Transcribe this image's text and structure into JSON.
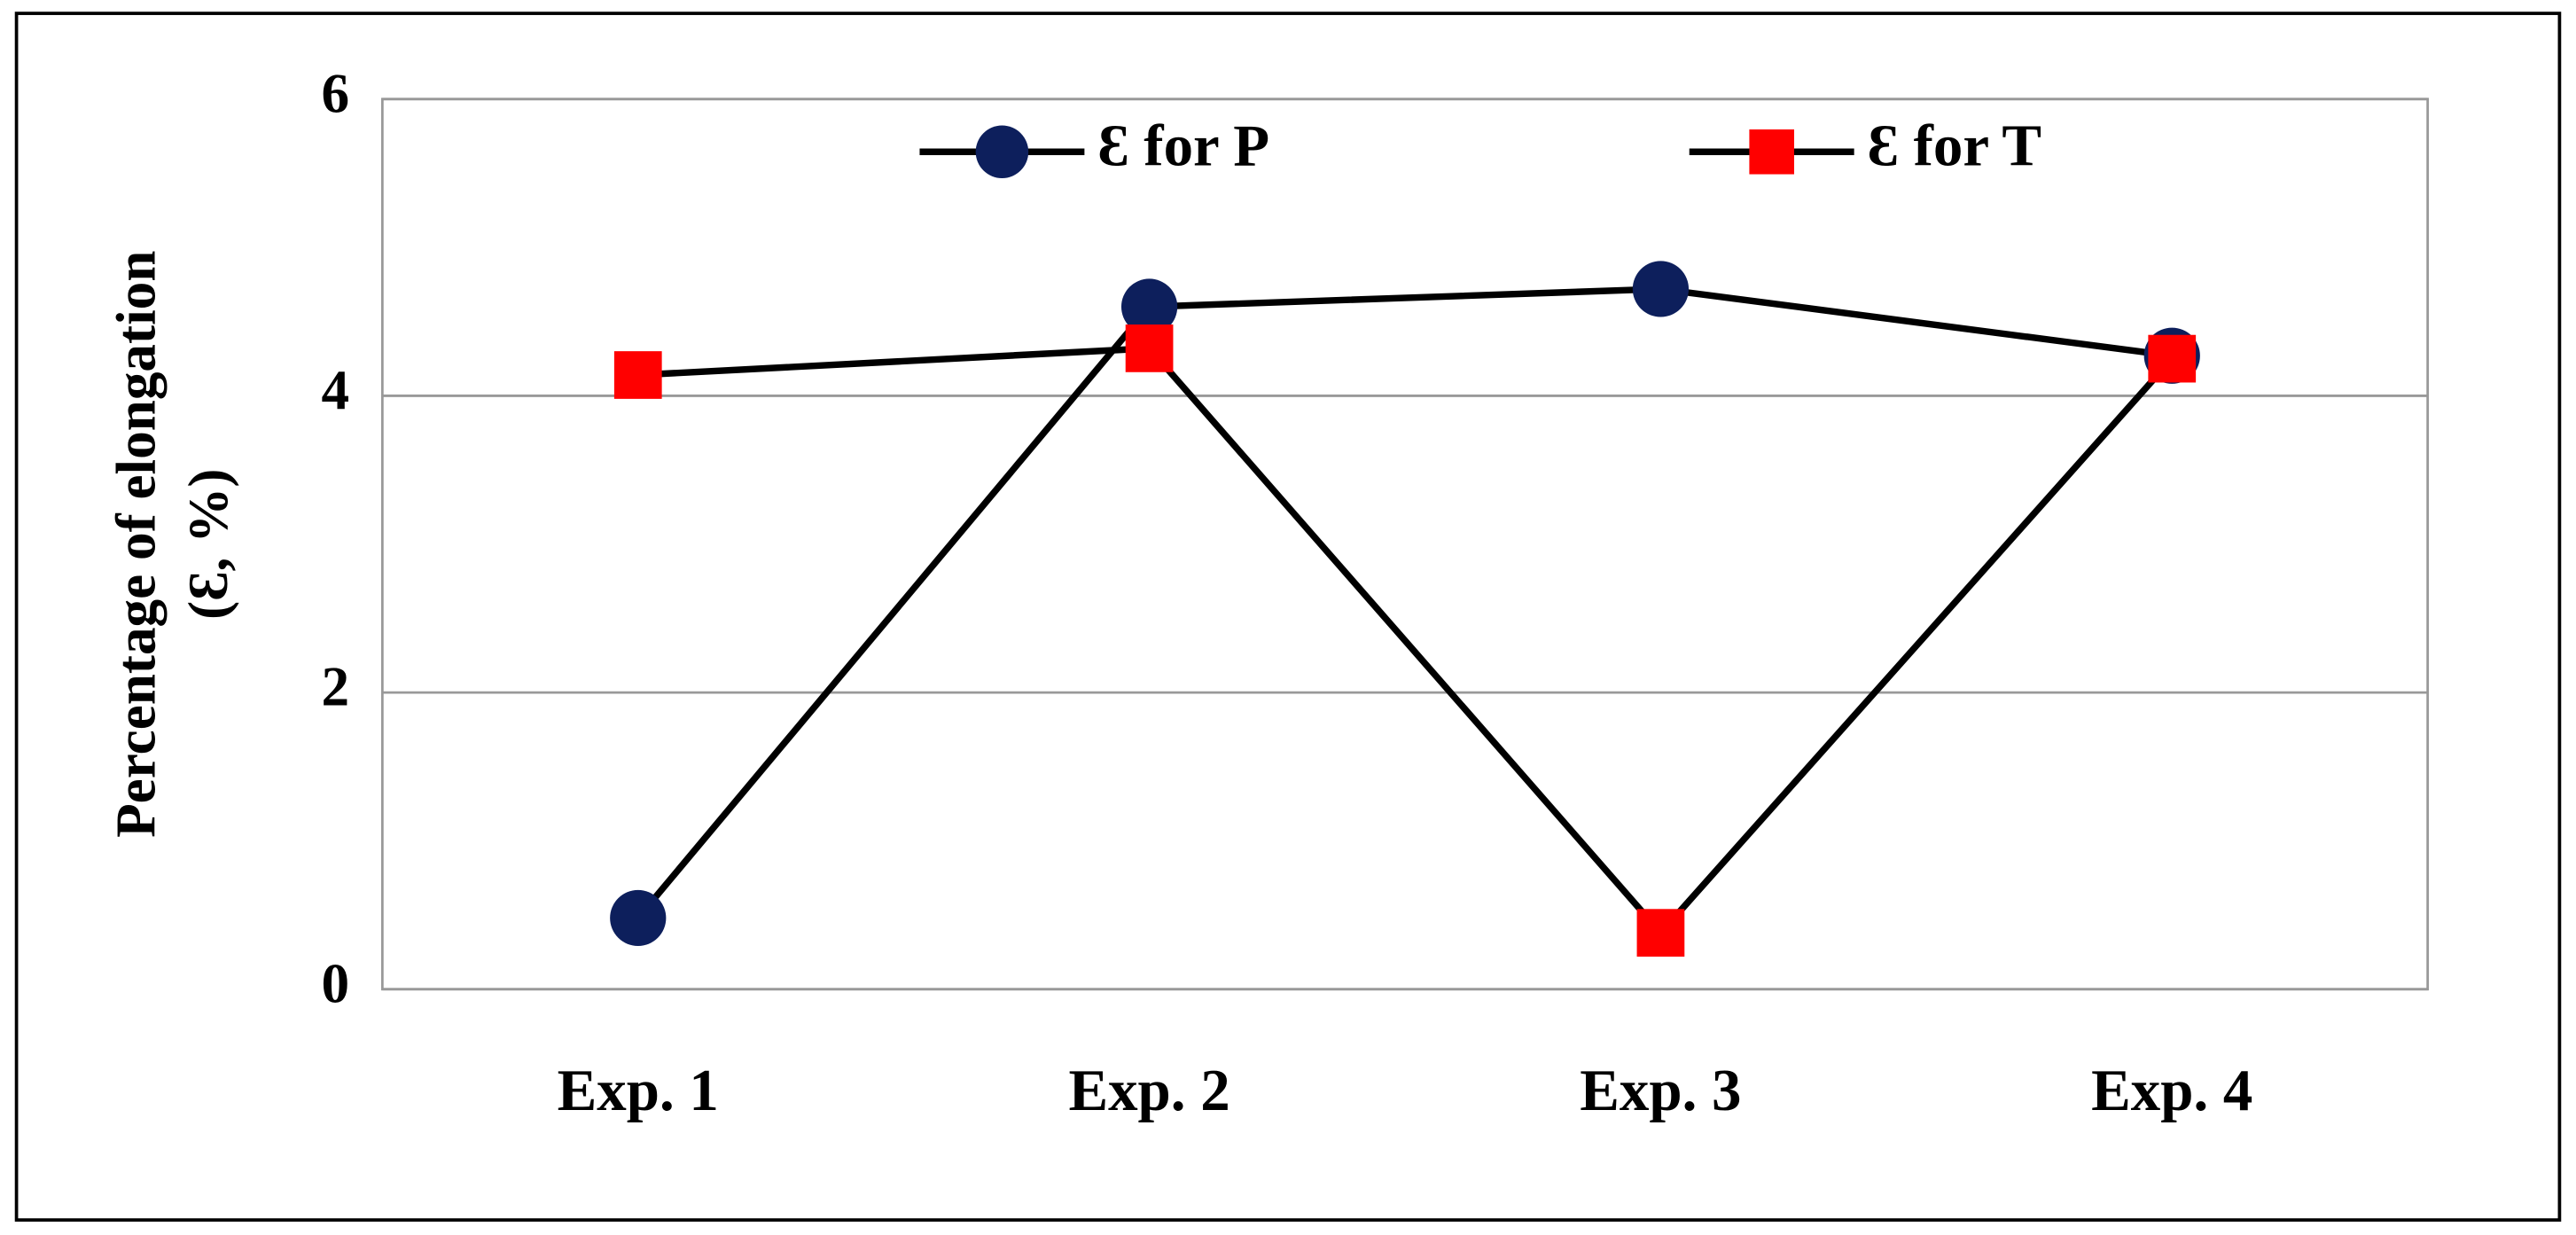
{
  "chart_data": {
    "type": "line",
    "y_label": [
      "Percentage of elongation",
      "(Ɛ, %)"
    ],
    "categories": [
      "Exp. 1",
      "Exp. 2",
      "Exp. 3",
      "Exp. 4"
    ],
    "series": [
      {
        "name": "Ɛ for P",
        "color": "#0d1f5c",
        "line_color": "#000000",
        "marker": "circle",
        "values": [
          0.48,
          4.6,
          4.72,
          4.27
        ]
      },
      {
        "name": "Ɛ for T",
        "color": "#ff0000",
        "line_color": "#000000",
        "marker": "square",
        "values": [
          4.14,
          4.32,
          0.38,
          4.25
        ]
      }
    ],
    "ylim": [
      0,
      6
    ],
    "yticks": [
      0,
      2,
      4,
      6
    ],
    "grid": true,
    "legend": "top"
  }
}
